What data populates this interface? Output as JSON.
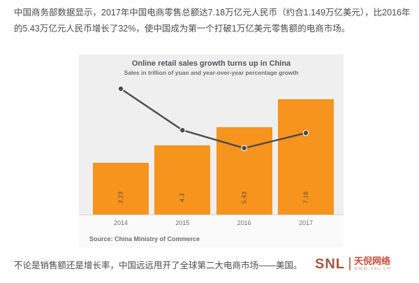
{
  "page": {
    "intro_text": "中国商务部数据显示，2017年中国电商零售总额达7.18万亿元人民币（约合1.149万亿美元），比2016年的5.43万亿元人民币增长了32%，使中国成为第一个打破1万亿美元零售额的电商市场。",
    "closing_text": "不论是销售额还是增长率，中国远远甩开了全球第二大电商市场——美国。"
  },
  "chart": {
    "title": "Online retail sales growth turns up in China",
    "subtitle": "Sales in trillion of yuan and year-over-year percentage growth",
    "source": "Source: China Ministry of Commerce",
    "colors": {
      "bar": "#f6941e",
      "line": "#4a4a4a",
      "plot_background": "#efefef",
      "text_gray": "#6d6e71"
    }
  },
  "chart_data": {
    "type": "bar",
    "categories": [
      "2014",
      "2015",
      "2016",
      "2017"
    ],
    "series": [
      {
        "name": "Sales in trillion of yuan",
        "type": "bar",
        "values": [
          3.23,
          4.3,
          5.43,
          7.18
        ],
        "labels": [
          "3.23",
          "4.3",
          "5.43",
          "7.18"
        ]
      },
      {
        "name": "Year-over-year percentage growth",
        "type": "line",
        "values": [
          49.7,
          33.3,
          26.2,
          32.2
        ],
        "note": "values estimated from line position; not labeled in chart"
      }
    ],
    "title": "Online retail sales growth turns up in China",
    "subtitle": "Sales in trillion of yuan and year-over-year percentage growth",
    "xlabel": "",
    "ylabel": "",
    "ylim_bars": [
      0,
      7.18
    ],
    "grid": false,
    "legend": "none",
    "source": "Source: China Ministry of Commerce"
  },
  "logo": {
    "snl_text": "SNL",
    "cn_name": "天倪网络",
    "url_text": "WWW.SNL.CN"
  }
}
